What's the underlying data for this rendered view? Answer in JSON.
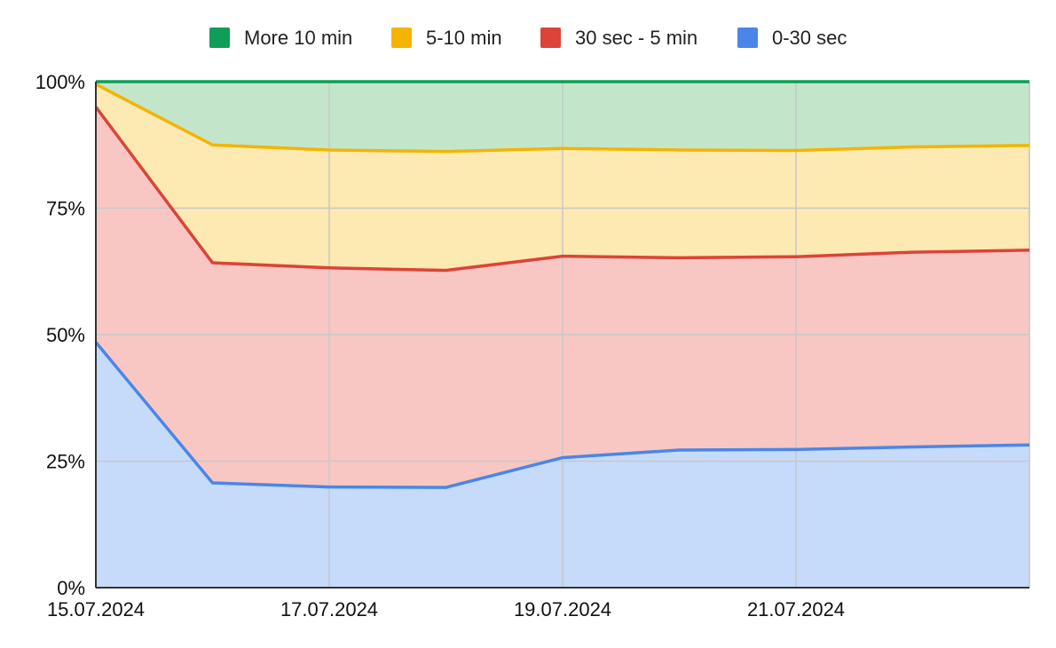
{
  "chart_data": {
    "type": "area",
    "stacked": true,
    "percent": true,
    "x": [
      "15.07.2024",
      "16.07.2024",
      "17.07.2024",
      "18.07.2024",
      "19.07.2024",
      "20.07.2024",
      "21.07.2024",
      "22.07.2024",
      "23.07.2024"
    ],
    "x_tick_labels": [
      "15.07.2024",
      "17.07.2024",
      "19.07.2024",
      "21.07.2024"
    ],
    "y_tick_labels": [
      "0%",
      "25%",
      "50%",
      "75%",
      "100%"
    ],
    "ylim": [
      0,
      100
    ],
    "grid": true,
    "legend_position": "top",
    "series": [
      {
        "name": "0-30 sec",
        "color": "#4a86e8",
        "fill": "#c6dafa",
        "values": [
          48.5,
          20.7,
          19.9,
          19.8,
          25.7,
          27.2,
          27.3,
          27.8,
          28.2
        ]
      },
      {
        "name": "30 sec - 5 min",
        "color": "#db4437",
        "fill": "#f8c7c4",
        "values": [
          46.5,
          43.5,
          43.3,
          42.9,
          39.8,
          38.0,
          38.1,
          38.5,
          38.5
        ]
      },
      {
        "name": "5-10 min",
        "color": "#f4b400",
        "fill": "#fde9b2",
        "values": [
          4.5,
          23.3,
          23.3,
          23.5,
          21.3,
          21.3,
          21.0,
          20.8,
          20.7
        ]
      },
      {
        "name": "More 10 min",
        "color": "#0f9d58",
        "fill": "#c3e6cb",
        "values": [
          0.5,
          12.5,
          13.5,
          13.8,
          13.2,
          13.5,
          13.6,
          12.9,
          12.6
        ]
      }
    ],
    "legend_order": [
      "More 10 min",
      "5-10 min",
      "30 sec - 5 min",
      "0-30 sec"
    ]
  }
}
